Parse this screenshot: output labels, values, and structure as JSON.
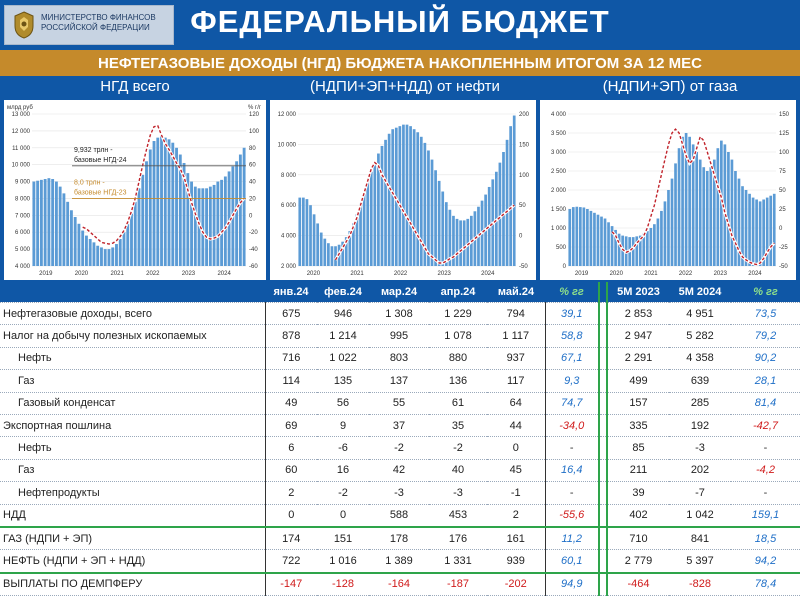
{
  "header": {
    "logo_text": [
      "МИНИСТЕРСТВО ФИНАНСОВ",
      "РОССИЙСКОЙ ФЕДЕРАЦИИ"
    ],
    "title": "ФЕДЕРАЛЬНЫЙ БЮДЖЕТ",
    "subtitle": "НЕФТЕГАЗОВЫЕ ДОХОДЫ (НГД) БЮДЖЕТА НАКОПЛЕННЫМ ИТОГОМ ЗА 12 МЕС",
    "colors": {
      "header": "#0f57a6",
      "subtitle": "#c58a2b",
      "accent_green": "#2ea44a"
    }
  },
  "chart_data": [
    {
      "type": "bar",
      "title": "НГД всего",
      "left_unit": "млрд руб",
      "right_unit": "% г/г",
      "ylim": [
        4000,
        13000
      ],
      "ylim_right": [
        -60,
        120
      ],
      "y_ticks": [
        "4 000",
        "5 000",
        "6 000",
        "7 000",
        "8 000",
        "9 000",
        "10 000",
        "11 000",
        "12 000",
        "13 000"
      ],
      "y_ticks_right": [
        "-60",
        "-40",
        "-20",
        "0",
        "20",
        "40",
        "60",
        "80",
        "100",
        "120"
      ],
      "x_labels": [
        "2019",
        "2020",
        "2021",
        "2022",
        "2023",
        "2024"
      ],
      "values": [
        9000,
        9050,
        9100,
        9150,
        9200,
        9150,
        9000,
        8700,
        8300,
        7800,
        7300,
        6900,
        6500,
        6100,
        5800,
        5600,
        5400,
        5200,
        5100,
        5000,
        5000,
        5100,
        5300,
        5600,
        6000,
        6500,
        7100,
        7800,
        8600,
        9400,
        10200,
        10900,
        11400,
        11600,
        11700,
        11600,
        11500,
        11300,
        11000,
        10600,
        10100,
        9500,
        9000,
        8700,
        8600,
        8600,
        8600,
        8700,
        8800,
        9000,
        9100,
        9300,
        9600,
        9900,
        10200,
        10600,
        11000
      ],
      "pct_values": [
        null,
        null,
        null,
        null,
        null,
        null,
        null,
        null,
        null,
        null,
        null,
        null,
        null,
        -14,
        -16,
        -20,
        -24,
        -28,
        -32,
        -33,
        -34,
        -33,
        -30,
        -25,
        -18,
        -8,
        5,
        20,
        40,
        60,
        78,
        95,
        105,
        106,
        95,
        85,
        78,
        70,
        62,
        55,
        45,
        30,
        15,
        2,
        -10,
        -20,
        -26,
        -28,
        -27,
        -25,
        -20,
        -15,
        -8,
        0,
        8,
        15,
        20
      ],
      "annotations": [
        "9,932 трлн -",
        "базовые НГД-24",
        "8,0 трлн -",
        "базовые НГД-23"
      ]
    },
    {
      "type": "bar",
      "title": "(НДПИ+ЭП+НДД) от нефти",
      "ylim": [
        2000,
        12000
      ],
      "ylim_right": [
        -50,
        200
      ],
      "y_ticks": [
        "2 000",
        "4 000",
        "6 000",
        "8 000",
        "10 000",
        "12 000"
      ],
      "y_ticks_right": [
        "-50",
        "0",
        "50",
        "100",
        "150",
        "200"
      ],
      "x_labels": [
        "2020",
        "2021",
        "2022",
        "2023",
        "2024"
      ],
      "values": [
        6500,
        6500,
        6400,
        6000,
        5400,
        4800,
        4200,
        3800,
        3500,
        3300,
        3300,
        3400,
        3600,
        3900,
        4300,
        4800,
        5400,
        6100,
        6800,
        7500,
        8200,
        8800,
        9400,
        9900,
        10300,
        10700,
        11000,
        11100,
        11200,
        11300,
        11300,
        11200,
        11000,
        10800,
        10500,
        10100,
        9600,
        9000,
        8300,
        7600,
        6900,
        6200,
        5700,
        5300,
        5100,
        5000,
        5000,
        5100,
        5300,
        5600,
        5900,
        6300,
        6700,
        7200,
        7700,
        8200,
        8800,
        9500,
        10300,
        11200,
        11900
      ],
      "pct_values": [
        null,
        null,
        null,
        null,
        null,
        null,
        null,
        null,
        null,
        null,
        -40,
        -30,
        -20,
        -10,
        0,
        15,
        30,
        50,
        70,
        90,
        110,
        120,
        115,
        100,
        90,
        80,
        70,
        60,
        50,
        40,
        30,
        20,
        10,
        0,
        -10,
        -20,
        -30,
        -35,
        -40,
        -45,
        -45,
        -42,
        -38,
        -35,
        -30,
        -25,
        -20,
        -15,
        -10,
        -5,
        0,
        5,
        10,
        15,
        20,
        25,
        30,
        35,
        40,
        45,
        50
      ],
      "y_ticks_left_only": true
    },
    {
      "type": "bar",
      "title": "(НДПИ+ЭП) от газа",
      "ylim": [
        0,
        4000
      ],
      "ylim_right": [
        -50,
        150
      ],
      "y_ticks": [
        "0",
        "500",
        "1 000",
        "1 500",
        "2 000",
        "2 500",
        "3 000",
        "3 500",
        "4 000"
      ],
      "y_ticks_right": [
        "-50",
        "-25",
        "0",
        "25",
        "50",
        "75",
        "100",
        "125",
        "150"
      ],
      "x_labels": [
        "2019",
        "2020",
        "2021",
        "2022",
        "2023",
        "2024"
      ],
      "values": [
        1500,
        1550,
        1560,
        1550,
        1540,
        1500,
        1450,
        1400,
        1350,
        1300,
        1250,
        1150,
        1050,
        950,
        850,
        800,
        780,
        760,
        760,
        780,
        800,
        850,
        920,
        1000,
        1100,
        1250,
        1450,
        1700,
        2000,
        2300,
        2700,
        3100,
        3400,
        3500,
        3400,
        3200,
        3000,
        2800,
        2600,
        2500,
        2600,
        2800,
        3100,
        3300,
        3200,
        3000,
        2800,
        2500,
        2300,
        2100,
        2000,
        1900,
        1800,
        1750,
        1700,
        1750,
        1800,
        1850,
        1900
      ],
      "pct_values": [
        null,
        null,
        null,
        null,
        null,
        null,
        null,
        null,
        null,
        null,
        null,
        null,
        -5,
        -10,
        -20,
        -28,
        -32,
        -30,
        -26,
        -20,
        -15,
        -10,
        0,
        15,
        30,
        50,
        70,
        90,
        110,
        125,
        130,
        125,
        110,
        95,
        85,
        90,
        105,
        120,
        115,
        100,
        85,
        70,
        55,
        40,
        20,
        5,
        -10,
        -20,
        -30,
        -38,
        -42,
        -45,
        -47,
        -48,
        -46,
        -40,
        -32,
        -25,
        -20
      ]
    }
  ],
  "table": {
    "headers": [
      "янв.24",
      "фев.24",
      "мар.24",
      "апр.24",
      "май.24",
      "% гг",
      "5М 2023",
      "5М 2024",
      "% гг"
    ],
    "rows": [
      {
        "label": "Нефтегазовые доходы, всего",
        "indent": false,
        "values": [
          "675",
          "946",
          "1 308",
          "1 229",
          "794",
          "39,1",
          "2 853",
          "4 951",
          "73,5"
        ]
      },
      {
        "label": "Налог на добычу полезных ископаемых",
        "indent": false,
        "values": [
          "878",
          "1 214",
          "995",
          "1 078",
          "1 117",
          "58,8",
          "2 947",
          "5 282",
          "79,2"
        ]
      },
      {
        "label": "Нефть",
        "indent": true,
        "values": [
          "716",
          "1 022",
          "803",
          "880",
          "937",
          "67,1",
          "2 291",
          "4 358",
          "90,2"
        ]
      },
      {
        "label": "Газ",
        "indent": true,
        "values": [
          "114",
          "135",
          "137",
          "136",
          "117",
          "9,3",
          "499",
          "639",
          "28,1"
        ]
      },
      {
        "label": "Газовый конденсат",
        "indent": true,
        "values": [
          "49",
          "56",
          "55",
          "61",
          "64",
          "74,7",
          "157",
          "285",
          "81,4"
        ]
      },
      {
        "label": "Экспортная пошлина",
        "indent": false,
        "values": [
          "69",
          "9",
          "37",
          "35",
          "44",
          "-34,0",
          "335",
          "192",
          "-42,7"
        ]
      },
      {
        "label": "Нефть",
        "indent": true,
        "values": [
          "6",
          "-6",
          "-2",
          "-2",
          "0",
          "-",
          "85",
          "-3",
          "-"
        ]
      },
      {
        "label": "Газ",
        "indent": true,
        "values": [
          "60",
          "16",
          "42",
          "40",
          "45",
          "16,4",
          "211",
          "202",
          "-4,2"
        ]
      },
      {
        "label": "Нефтепродукты",
        "indent": true,
        "values": [
          "2",
          "-2",
          "-3",
          "-3",
          "-1",
          "-",
          "39",
          "-7",
          "-"
        ]
      },
      {
        "label": "НДД",
        "indent": false,
        "values": [
          "0",
          "0",
          "588",
          "453",
          "2",
          "-55,6",
          "402",
          "1 042",
          "159,1"
        ]
      },
      {
        "label": "ГАЗ (НДПИ + ЭП)",
        "indent": false,
        "values": [
          "174",
          "151",
          "178",
          "176",
          "161",
          "11,2",
          "710",
          "841",
          "18,5"
        ]
      },
      {
        "label": "НЕФТЬ (НДПИ + ЭП + НДД)",
        "indent": false,
        "values": [
          "722",
          "1 016",
          "1 389",
          "1 331",
          "939",
          "60,1",
          "2 779",
          "5 397",
          "94,2"
        ]
      },
      {
        "label": "ВЫПЛАТЫ ПО ДЕМПФЕРУ",
        "indent": false,
        "values": [
          "-147",
          "-128",
          "-164",
          "-187",
          "-202",
          "94,9",
          "-464",
          "-828",
          "78,4"
        ]
      }
    ]
  }
}
